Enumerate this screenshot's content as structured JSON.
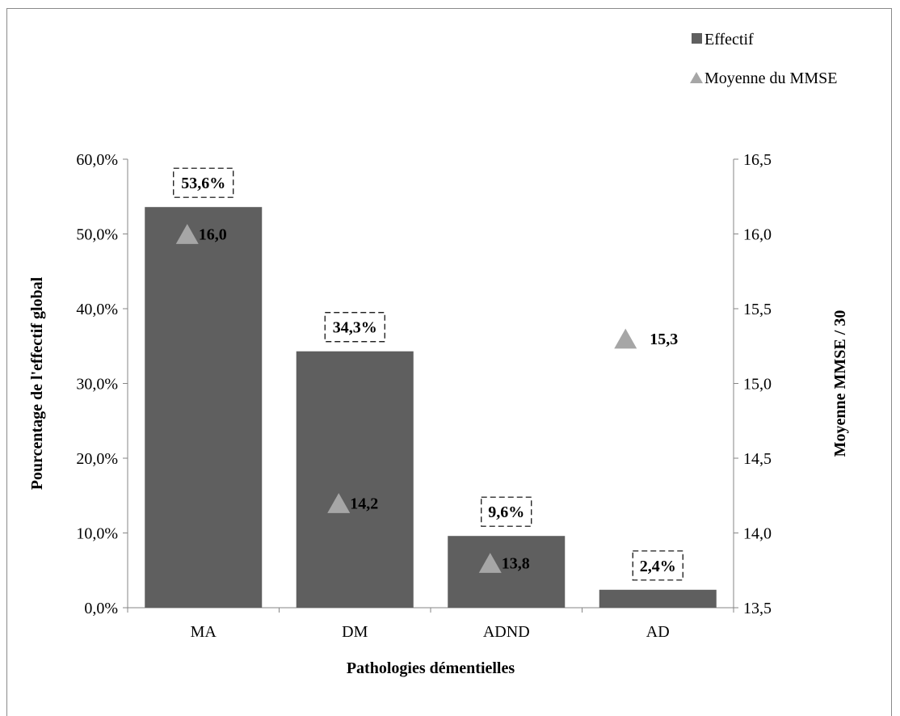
{
  "chart_data": {
    "type": "bar",
    "categories": [
      "MA",
      "DM",
      "ADND",
      "AD"
    ],
    "series": [
      {
        "name": "Effectif",
        "kind": "bar",
        "axis": "left",
        "values": [
          53.6,
          34.3,
          9.6,
          2.4
        ],
        "labels": [
          "53,6%",
          "34,3%",
          "9,6%",
          "2,4%"
        ],
        "color": "#5f5f5f"
      },
      {
        "name": "Moyenne du MMSE",
        "kind": "marker-triangle",
        "axis": "right",
        "values": [
          16.0,
          14.2,
          13.8,
          15.3
        ],
        "labels": [
          "16,0",
          "14,2",
          "13,8",
          "15,3"
        ],
        "color": "#a6a6a6"
      }
    ],
    "xlabel": "Pathologies démentielles",
    "ylabel": "Pourcentage de l'effectif global",
    "y2label": "Moyenne MMSE / 30",
    "ylim": [
      0,
      60
    ],
    "y2lim": [
      13.5,
      16.5
    ],
    "yticks": [
      "0,0%",
      "10,0%",
      "20,0%",
      "30,0%",
      "40,0%",
      "50,0%",
      "60,0%"
    ],
    "y2ticks": [
      "13,5",
      "14,0",
      "14,5",
      "15,0",
      "15,5",
      "16,0",
      "16,5"
    ],
    "legend": "top-right",
    "grid": false
  }
}
